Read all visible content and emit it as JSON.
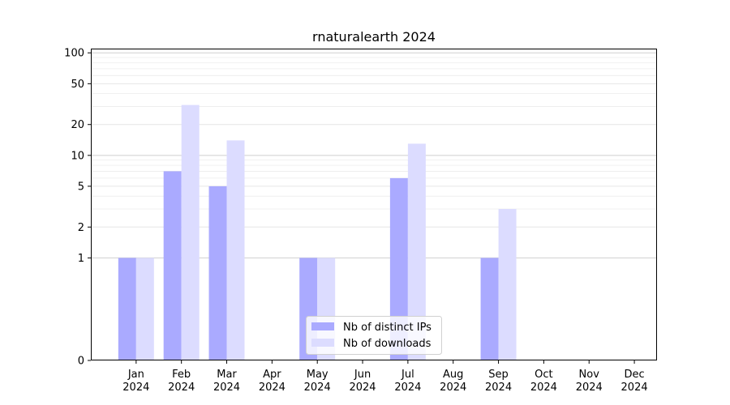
{
  "chart_data": {
    "type": "bar",
    "title": "rnaturalearth 2024",
    "xlabel": "",
    "ylabel": "",
    "yscale": "symlog",
    "ylim": [
      0,
      110
    ],
    "yticks": [
      0,
      1,
      2,
      5,
      10,
      20,
      50,
      100
    ],
    "categories": [
      [
        "Jan",
        "2024"
      ],
      [
        "Feb",
        "2024"
      ],
      [
        "Mar",
        "2024"
      ],
      [
        "Apr",
        "2024"
      ],
      [
        "May",
        "2024"
      ],
      [
        "Jun",
        "2024"
      ],
      [
        "Jul",
        "2024"
      ],
      [
        "Aug",
        "2024"
      ],
      [
        "Sep",
        "2024"
      ],
      [
        "Oct",
        "2024"
      ],
      [
        "Nov",
        "2024"
      ],
      [
        "Dec",
        "2024"
      ]
    ],
    "series": [
      {
        "name": "Nb of distinct IPs",
        "color": "#aaaaff",
        "values": [
          1,
          7,
          5,
          0,
          1,
          0,
          6,
          0,
          1,
          0,
          0,
          0
        ]
      },
      {
        "name": "Nb of downloads",
        "color": "#dcdcff",
        "values": [
          1,
          31,
          14,
          0,
          1,
          0,
          13,
          0,
          3,
          0,
          0,
          0
        ]
      }
    ],
    "grid": true,
    "legend_position": "bottom-center"
  }
}
